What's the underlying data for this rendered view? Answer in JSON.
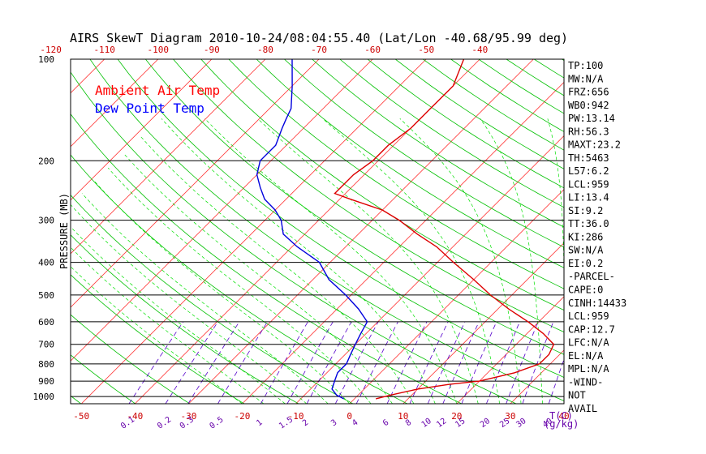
{
  "chart_data": {
    "type": "line",
    "title": "AIRS SkewT Diagram 2010-10-24/08:04:55.40 (Lat/Lon -40.68/95.99 deg)",
    "ylabel": "PRESSURE (MB)",
    "xlabel_bottom_right": "T(C)",
    "mixing_ratio_unit": "(g/kg)",
    "y_axis": {
      "scale": "log",
      "range": [
        1050,
        100
      ],
      "ticks": [
        "100",
        "200",
        "300",
        "400",
        "500",
        "600",
        "700",
        "800",
        "900",
        "1000"
      ]
    },
    "x_axis_bottom": {
      "range": [
        -52,
        40
      ],
      "ticks": [
        "-50",
        "-40",
        "-30",
        "-20",
        "-10",
        "0",
        "10",
        "20",
        "30",
        "40"
      ]
    },
    "x_axis_top": {
      "ticks": [
        "-120",
        "-110",
        "-100",
        "-90",
        "-80",
        "-70",
        "-60",
        "-50",
        "-40"
      ]
    },
    "mixing_ratio_labels": [
      "0.1",
      "0.2",
      "0.3",
      "0.5",
      "1",
      "1.5",
      "2",
      "3",
      "4",
      "6",
      "8",
      "10",
      "12",
      "15",
      "20",
      "25",
      "30",
      "40"
    ],
    "legend": {
      "placement": "top-left",
      "entries": [
        {
          "name": "Ambient Air Temp",
          "color": "#ff0000"
        },
        {
          "name": "Dew Point Temp",
          "color": "#0000ff"
        }
      ]
    },
    "colors": {
      "isotherm": "#ff3030",
      "dry_adiabat": "#00c000",
      "moist_adiabat": "#00e000",
      "mixing_ratio": "#5500cc",
      "isobar": "#000000",
      "temp": "#dd0000",
      "dew": "#0000dd"
    },
    "series": [
      {
        "name": "Ambient Air Temp",
        "points": [
          [
            1015,
            4
          ],
          [
            990,
            6
          ],
          [
            950,
            10
          ],
          [
            920,
            15
          ],
          [
            900,
            20
          ],
          [
            850,
            25
          ],
          [
            800,
            28
          ],
          [
            750,
            28
          ],
          [
            700,
            27
          ],
          [
            650,
            23
          ],
          [
            600,
            18
          ],
          [
            550,
            12
          ],
          [
            500,
            6
          ],
          [
            450,
            0
          ],
          [
            400,
            -7
          ],
          [
            360,
            -13
          ],
          [
            330,
            -19
          ],
          [
            300,
            -25
          ],
          [
            280,
            -30
          ],
          [
            260,
            -38
          ],
          [
            250,
            -42
          ],
          [
            240,
            -42
          ],
          [
            220,
            -42
          ],
          [
            200,
            -41
          ],
          [
            180,
            -41
          ],
          [
            160,
            -40
          ],
          [
            140,
            -40
          ],
          [
            120,
            -40
          ],
          [
            100,
            -43
          ]
        ]
      },
      {
        "name": "Dew Point Temp",
        "points": [
          [
            1015,
            -2
          ],
          [
            990,
            -4
          ],
          [
            950,
            -6
          ],
          [
            900,
            -7
          ],
          [
            850,
            -8
          ],
          [
            800,
            -8
          ],
          [
            750,
            -9
          ],
          [
            700,
            -10
          ],
          [
            650,
            -11
          ],
          [
            600,
            -12
          ],
          [
            550,
            -16
          ],
          [
            500,
            -21
          ],
          [
            450,
            -27
          ],
          [
            400,
            -32
          ],
          [
            360,
            -39
          ],
          [
            330,
            -44
          ],
          [
            300,
            -47
          ],
          [
            280,
            -50
          ],
          [
            260,
            -54
          ],
          [
            240,
            -57
          ],
          [
            220,
            -60
          ],
          [
            200,
            -62
          ],
          [
            180,
            -62
          ],
          [
            160,
            -64
          ],
          [
            150,
            -65
          ],
          [
            140,
            -66
          ],
          [
            120,
            -70
          ],
          [
            100,
            -75
          ]
        ]
      }
    ],
    "stats": [
      "TP:100",
      "MW:N/A",
      "FRZ:656",
      "WB0:942",
      "PW:13.14",
      "RH:56.3",
      "MAXT:23.2",
      "TH:5463",
      "L57:6.2",
      "LCL:959",
      "LI:13.4",
      "SI:9.2",
      "TT:36.0",
      "KI:286",
      "SW:N/A",
      "EI:0.2",
      "-PARCEL-",
      "CAPE:0",
      "CINH:14433",
      "LCL:959",
      "CAP:12.7",
      "LFC:N/A",
      "EL:N/A",
      "MPL:N/A",
      "-WIND-",
      "NOT",
      "AVAIL"
    ]
  }
}
